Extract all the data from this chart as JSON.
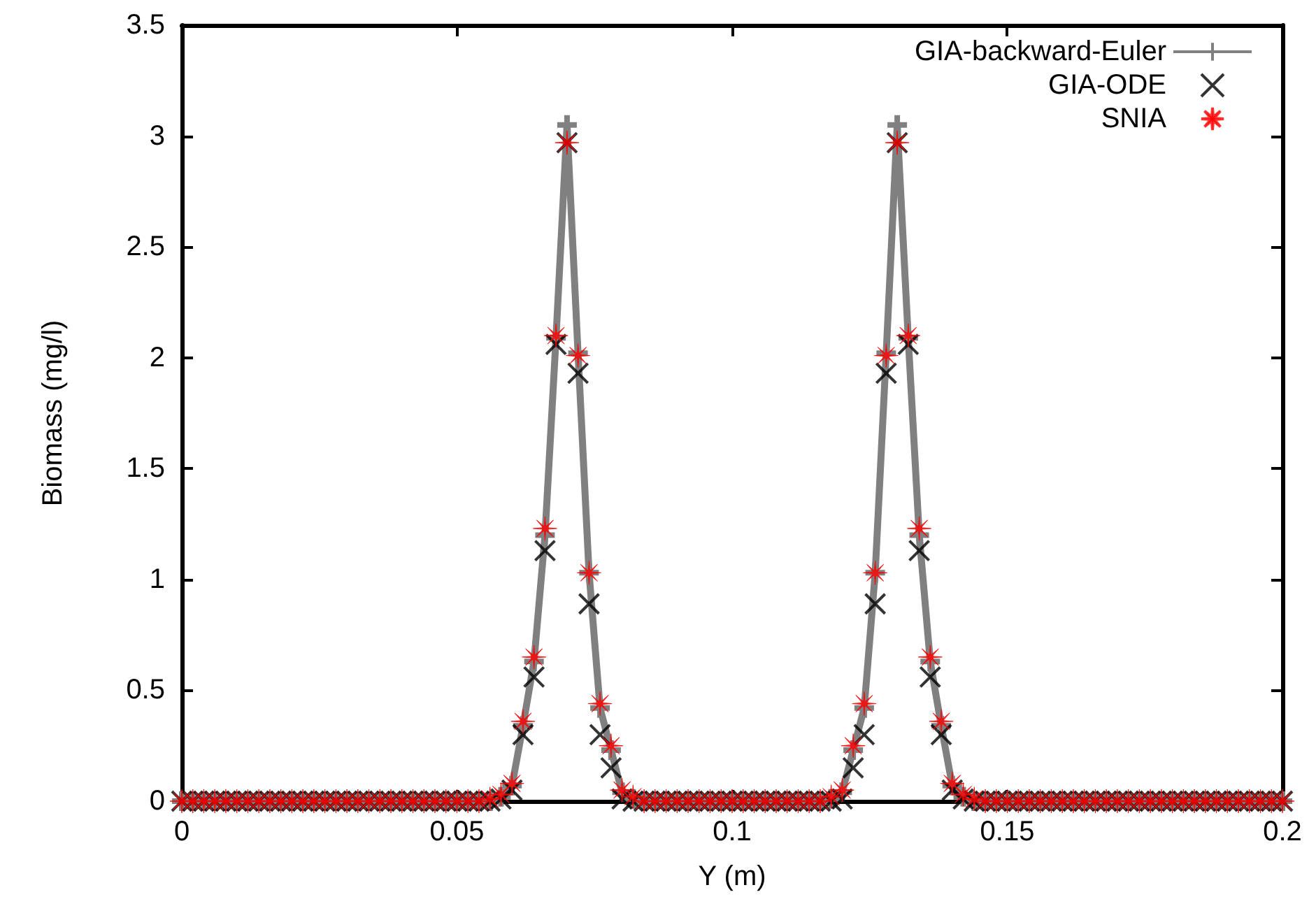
{
  "chart_data": {
    "type": "line",
    "xlabel": "Y (m)",
    "ylabel": "Biomass (mg/l)",
    "x": [
      0,
      0.002,
      0.004,
      0.006,
      0.008,
      0.01,
      0.012,
      0.014,
      0.016,
      0.018,
      0.02,
      0.022,
      0.024,
      0.026,
      0.028,
      0.03,
      0.032,
      0.034,
      0.036,
      0.038,
      0.04,
      0.042,
      0.044,
      0.046,
      0.048,
      0.05,
      0.052,
      0.054,
      0.056,
      0.058,
      0.06,
      0.062,
      0.064,
      0.066,
      0.068,
      0.07,
      0.072,
      0.074,
      0.076,
      0.078,
      0.08,
      0.082,
      0.084,
      0.086,
      0.088,
      0.09,
      0.092,
      0.094,
      0.096,
      0.098,
      0.1,
      0.102,
      0.104,
      0.106,
      0.108,
      0.11,
      0.112,
      0.114,
      0.116,
      0.118,
      0.12,
      0.122,
      0.124,
      0.126,
      0.128,
      0.13,
      0.132,
      0.134,
      0.136,
      0.138,
      0.14,
      0.142,
      0.144,
      0.146,
      0.148,
      0.15,
      0.152,
      0.154,
      0.156,
      0.158,
      0.16,
      0.162,
      0.164,
      0.166,
      0.168,
      0.17,
      0.172,
      0.174,
      0.176,
      0.178,
      0.18,
      0.182,
      0.184,
      0.186,
      0.188,
      0.19,
      0.192,
      0.194,
      0.196,
      0.198,
      0.2
    ],
    "series": [
      {
        "name": "GIA-backward-Euler",
        "marker": "cross",
        "color": "#808080",
        "values": [
          0,
          0,
          0,
          0,
          0,
          0,
          0,
          0,
          0,
          0,
          0,
          0,
          0,
          0,
          0,
          0,
          0,
          0,
          0,
          0,
          0,
          0,
          0,
          0,
          0,
          0,
          0,
          0,
          0,
          0.02,
          0.07,
          0.34,
          0.63,
          1.2,
          2.09,
          3.05,
          2.02,
          1.03,
          0.42,
          0.23,
          0.04,
          0.01,
          0,
          0,
          0,
          0,
          0,
          0,
          0,
          0,
          0,
          0,
          0,
          0,
          0,
          0,
          0,
          0,
          0,
          0.01,
          0.04,
          0.23,
          0.42,
          1.03,
          2.02,
          3.05,
          2.09,
          1.2,
          0.63,
          0.34,
          0.07,
          0.02,
          0,
          0,
          0,
          0,
          0,
          0,
          0,
          0,
          0,
          0,
          0,
          0,
          0,
          0,
          0,
          0,
          0,
          0,
          0,
          0,
          0,
          0,
          0,
          0,
          0,
          0,
          0,
          0,
          0
        ]
      },
      {
        "name": "GIA-ODE",
        "type": "scatter",
        "marker": "cross",
        "color": "#000000",
        "values": [
          0,
          0,
          0,
          0,
          0,
          0,
          0,
          0,
          0,
          0,
          0,
          0,
          0,
          0,
          0,
          0,
          0,
          0,
          0,
          0,
          0,
          0,
          0,
          0,
          0,
          0,
          0,
          0,
          0,
          0.01,
          0.05,
          0.3,
          0.56,
          1.13,
          2.06,
          2.97,
          1.93,
          0.89,
          0.3,
          0.15,
          0.01,
          0,
          0,
          0,
          0,
          0,
          0,
          0,
          0,
          0,
          0,
          0,
          0,
          0,
          0,
          0,
          0,
          0,
          0,
          0,
          0.01,
          0.15,
          0.3,
          0.89,
          1.93,
          2.97,
          2.06,
          1.13,
          0.56,
          0.3,
          0.05,
          0.01,
          0,
          0,
          0,
          0,
          0,
          0,
          0,
          0,
          0,
          0,
          0,
          0,
          0,
          0,
          0,
          0,
          0,
          0,
          0,
          0,
          0,
          0,
          0,
          0,
          0,
          0,
          0,
          0,
          0
        ]
      },
      {
        "name": "SNIA",
        "type": "scatter",
        "marker": "star",
        "color": "#ff0000",
        "values": [
          0,
          0,
          0,
          0,
          0,
          0,
          0,
          0,
          0,
          0,
          0,
          0,
          0,
          0,
          0,
          0,
          0,
          0,
          0,
          0,
          0,
          0,
          0,
          0,
          0,
          0,
          0,
          0,
          0.01,
          0.03,
          0.08,
          0.36,
          0.65,
          1.23,
          2.1,
          2.97,
          2.01,
          1.03,
          0.44,
          0.25,
          0.05,
          0.02,
          0,
          0,
          0,
          0,
          0,
          0,
          0,
          0,
          0,
          0,
          0,
          0,
          0,
          0,
          0,
          0,
          0,
          0.02,
          0.05,
          0.25,
          0.44,
          1.03,
          2.01,
          2.97,
          2.1,
          1.23,
          0.65,
          0.36,
          0.08,
          0.03,
          0.01,
          0,
          0,
          0,
          0,
          0,
          0,
          0,
          0,
          0,
          0,
          0,
          0,
          0,
          0,
          0,
          0,
          0,
          0,
          0,
          0,
          0,
          0,
          0,
          0,
          0,
          0,
          0,
          0
        ]
      }
    ],
    "xlim": [
      0,
      0.2
    ],
    "xticks": [
      0,
      0.05,
      0.1,
      0.15,
      0.2
    ],
    "ylim": [
      0,
      3.5
    ],
    "yticks": [
      0,
      0.5,
      1,
      1.5,
      2,
      2.5,
      3,
      3.5
    ],
    "grid": false,
    "legend": "top right"
  }
}
